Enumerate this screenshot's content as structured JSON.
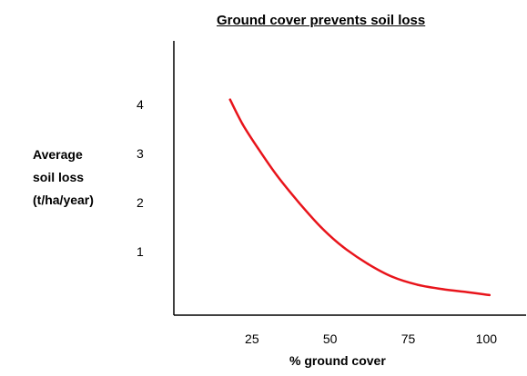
{
  "chart_data": {
    "type": "line",
    "title": "Ground cover prevents soil loss",
    "ylabel_lines": [
      "Average",
      "soil loss",
      "(t/ha/year)"
    ],
    "xlabel": "% ground cover",
    "x_ticks": [
      25,
      50,
      75,
      100
    ],
    "y_ticks": [
      1,
      2,
      3,
      4
    ],
    "xlim": [
      0,
      113
    ],
    "ylim": [
      -0.3,
      5.3
    ],
    "grid": false,
    "series": [
      {
        "color": "#e8141b",
        "points": [
          {
            "x": 18,
            "y": 4.1
          },
          {
            "x": 22,
            "y": 3.6
          },
          {
            "x": 27,
            "y": 3.1
          },
          {
            "x": 33,
            "y": 2.55
          },
          {
            "x": 40,
            "y": 2.0
          },
          {
            "x": 47,
            "y": 1.5
          },
          {
            "x": 54,
            "y": 1.1
          },
          {
            "x": 62,
            "y": 0.75
          },
          {
            "x": 70,
            "y": 0.48
          },
          {
            "x": 78,
            "y": 0.32
          },
          {
            "x": 86,
            "y": 0.23
          },
          {
            "x": 94,
            "y": 0.17
          },
          {
            "x": 101,
            "y": 0.11
          }
        ]
      }
    ]
  }
}
